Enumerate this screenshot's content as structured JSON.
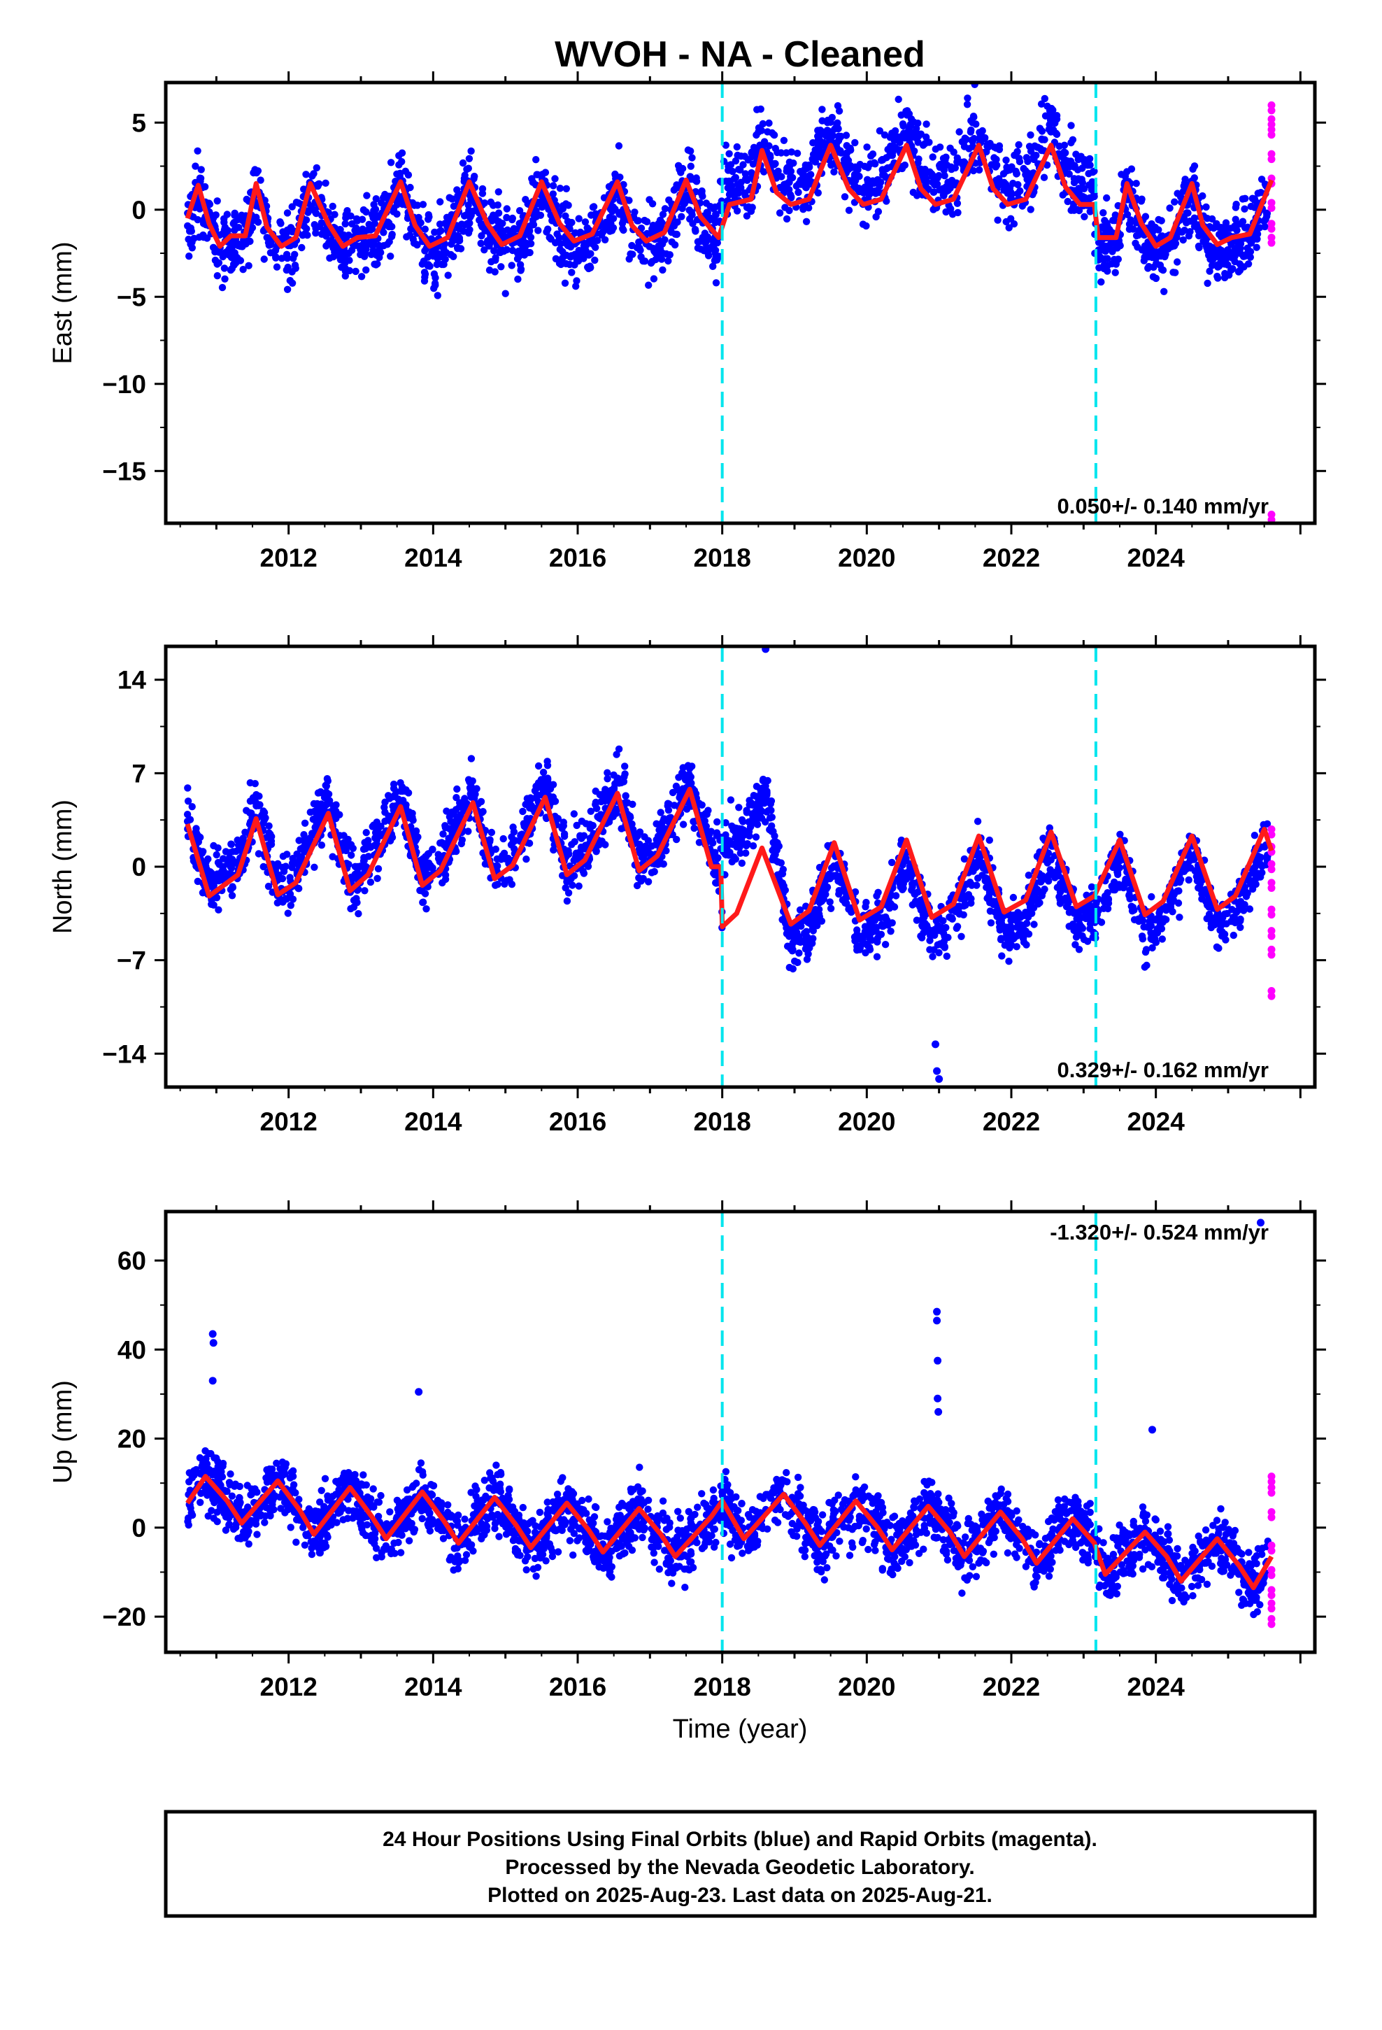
{
  "chart_data": {
    "type": "scatter",
    "title": "WVOH  - NA - Cleaned",
    "xlabel": "Time (year)",
    "x_ticks": [
      "2012",
      "2014",
      "2016",
      "2018",
      "2020",
      "2022",
      "2024"
    ],
    "xlim": [
      2010.3,
      2026.2
    ],
    "event_lines_x": [
      2018.0,
      2023.17
    ],
    "legend": "none",
    "colors": {
      "final_orbits": "#0000ff",
      "rapid_orbits": "#ff00ff",
      "model": "#ff1a1a",
      "events": "#00e5ee",
      "frame": "#000000"
    },
    "panels": [
      {
        "ylabel": "East (mm)",
        "ylim": [
          -18.0,
          7.3
        ],
        "y_ticks": [
          5,
          0,
          -5,
          -10,
          -15
        ],
        "y_tick_labels": [
          "5",
          "0",
          "−5",
          "−10",
          "−15"
        ],
        "rate_label": "0.050+/- 0.140 mm/yr",
        "rate_position": "bottom-right",
        "model_curve": {
          "x": [
            2010.6,
            2010.75,
            2010.9,
            2011.05,
            2011.2,
            2011.4,
            2011.55,
            2011.7,
            2011.9,
            2012.1,
            2012.3,
            2012.55,
            2012.75,
            2012.95,
            2013.2,
            2013.55,
            2013.75,
            2013.95,
            2014.2,
            2014.5,
            2014.75,
            2014.95,
            2015.2,
            2015.5,
            2015.75,
            2015.95,
            2016.2,
            2016.55,
            2016.75,
            2016.95,
            2017.2,
            2017.5,
            2017.7,
            2017.95,
            2018.1,
            2018.4,
            2018.55,
            2018.75,
            2018.95,
            2019.2,
            2019.5,
            2019.75,
            2019.95,
            2020.2,
            2020.55,
            2020.75,
            2020.95,
            2021.2,
            2021.55,
            2021.75,
            2021.95,
            2022.2,
            2022.55,
            2022.75,
            2022.95,
            2023.15,
            2023.2,
            2023.45,
            2023.6,
            2023.8,
            2024.0,
            2024.2,
            2024.5,
            2024.65,
            2024.85,
            2025.05,
            2025.3,
            2025.6
          ],
          "y": [
            -0.5,
            1.4,
            -0.8,
            -2.1,
            -1.5,
            -1.5,
            1.5,
            -1.0,
            -2.1,
            -1.6,
            1.5,
            -0.8,
            -2.1,
            -1.6,
            -1.5,
            1.6,
            -0.9,
            -2.1,
            -1.6,
            1.6,
            -0.8,
            -2.0,
            -1.5,
            1.6,
            -0.8,
            -1.8,
            -1.4,
            1.6,
            -0.9,
            -1.8,
            -1.3,
            1.7,
            -0.4,
            -1.6,
            0.3,
            0.6,
            3.4,
            1.0,
            0.3,
            0.6,
            3.7,
            1.2,
            0.3,
            0.6,
            3.7,
            1.2,
            0.3,
            0.6,
            3.7,
            1.2,
            0.3,
            0.6,
            3.7,
            1.3,
            0.3,
            0.3,
            -1.6,
            -1.6,
            1.5,
            -0.8,
            -2.1,
            -1.6,
            1.5,
            -0.9,
            -2.0,
            -1.6,
            -1.4,
            1.7
          ]
        },
        "point_cloud": {
          "x_range": [
            2010.6,
            2025.55
          ],
          "spread_mm": 1.5,
          "seasonal_amplitude_mm": 1.8,
          "note_segments": [
            [
              2010.6,
              2017.95,
              -0.3
            ],
            [
              2017.95,
              2023.15,
              1.1
            ],
            [
              2023.15,
              2025.55,
              -0.3
            ]
          ]
        },
        "rapid_orbit_points": {
          "x": 2025.6,
          "y": [
            6.0,
            5.2,
            4.6,
            3.2,
            1.8,
            0.4,
            -0.8,
            -1.6,
            -17.5
          ]
        }
      },
      {
        "ylabel": "North (mm)",
        "ylim": [
          -16.5,
          16.5
        ],
        "y_ticks": [
          14,
          7,
          0,
          -7,
          -14
        ],
        "y_tick_labels": [
          "14",
          "7",
          "0",
          "−7",
          "−14"
        ],
        "rate_label": "0.329+/- 0.162 mm/yr",
        "rate_position": "bottom-right",
        "model_curve": {
          "x": [
            2010.6,
            2010.9,
            2011.05,
            2011.3,
            2011.55,
            2011.85,
            2012.1,
            2012.55,
            2012.85,
            2013.1,
            2013.55,
            2013.85,
            2014.1,
            2014.55,
            2014.85,
            2015.1,
            2015.55,
            2015.85,
            2016.1,
            2016.55,
            2016.85,
            2017.1,
            2017.55,
            2017.85,
            2017.98,
            2018.0,
            2018.2,
            2018.55,
            2018.95,
            2019.2,
            2019.55,
            2019.9,
            2020.2,
            2020.55,
            2020.9,
            2021.2,
            2021.55,
            2021.9,
            2022.2,
            2022.55,
            2022.9,
            2023.15,
            2023.5,
            2023.85,
            2024.1,
            2024.5,
            2024.85,
            2025.1,
            2025.5,
            2025.6
          ],
          "y": [
            3.2,
            -2.2,
            -1.6,
            -0.6,
            3.6,
            -2.1,
            -1.2,
            4.0,
            -1.8,
            -0.6,
            4.5,
            -1.4,
            -0.3,
            4.8,
            -0.9,
            0.1,
            5.2,
            -0.6,
            0.5,
            5.5,
            -0.3,
            0.8,
            5.8,
            0.0,
            0.0,
            -4.5,
            -3.5,
            1.4,
            -4.3,
            -3.3,
            1.8,
            -4.0,
            -3.0,
            2.0,
            -3.8,
            -2.8,
            2.3,
            -3.4,
            -2.5,
            2.6,
            -3.0,
            -2.2,
            2.0,
            -3.6,
            -2.6,
            2.3,
            -3.2,
            -2.2,
            2.8,
            1.2
          ]
        },
        "point_cloud": {
          "x_range": [
            2010.6,
            2025.55
          ],
          "spread_mm": 1.6,
          "seasonal_amplitude_mm": 3.0,
          "note_segments": [
            [
              2010.6,
              2018.6,
              0.8
            ],
            [
              2018.9,
              2025.55,
              -1.3
            ]
          ]
        },
        "outliers": [
          {
            "x": 2018.6,
            "y": 16.3
          },
          {
            "x": 2020.95,
            "y": -13.3
          },
          {
            "x": 2020.97,
            "y": -15.3
          },
          {
            "x": 2021.0,
            "y": -15.9
          }
        ],
        "rapid_orbit_points": {
          "x": 2025.6,
          "y": [
            2.8,
            1.5,
            0.2,
            -1.2,
            -3.2,
            -4.8,
            -6.2,
            -9.3
          ]
        }
      },
      {
        "ylabel": "Up (mm)",
        "ylim": [
          -28.0,
          71.0
        ],
        "y_ticks": [
          60,
          40,
          20,
          0,
          -20
        ],
        "y_tick_labels": [
          "60",
          "40",
          "20",
          "0",
          "−20"
        ],
        "rate_label": "-1.320+/- 0.524 mm/yr",
        "rate_position": "top-right",
        "model_curve": {
          "x": [
            2010.6,
            2010.85,
            2011.15,
            2011.35,
            2011.85,
            2012.15,
            2012.35,
            2012.85,
            2013.15,
            2013.35,
            2013.85,
            2014.15,
            2014.35,
            2014.85,
            2015.15,
            2015.35,
            2015.85,
            2016.15,
            2016.35,
            2016.85,
            2017.15,
            2017.35,
            2017.85,
            2018.0,
            2018.3,
            2018.85,
            2019.15,
            2019.35,
            2019.85,
            2020.15,
            2020.35,
            2020.85,
            2021.15,
            2021.35,
            2021.85,
            2022.15,
            2022.35,
            2022.85,
            2023.15,
            2023.3,
            2023.85,
            2024.15,
            2024.35,
            2024.85,
            2025.15,
            2025.35,
            2025.6
          ],
          "y": [
            5.5,
            11.5,
            6.0,
            1.0,
            10.5,
            4.0,
            -1.5,
            9.0,
            2.5,
            -2.5,
            8.0,
            1.5,
            -3.5,
            6.8,
            0.5,
            -4.5,
            5.5,
            -0.5,
            -5.5,
            4.3,
            -1.5,
            -6.5,
            2.5,
            6.0,
            -2.5,
            7.5,
            1.0,
            -4.0,
            6.0,
            0.0,
            -5.0,
            4.8,
            -1.0,
            -6.5,
            3.5,
            -2.5,
            -8.0,
            2.0,
            -3.5,
            -10.5,
            -1.0,
            -6.5,
            -12.0,
            -2.5,
            -8.5,
            -13.5,
            -6.5
          ]
        },
        "point_cloud": {
          "x_range": [
            2010.6,
            2025.55
          ],
          "spread_mm": 5.0,
          "seasonal_amplitude_mm": 5.0,
          "note_segments": [
            [
              2010.6,
              2025.55,
              0.0
            ]
          ]
        },
        "outliers": [
          {
            "x": 2010.95,
            "y": 43.5
          },
          {
            "x": 2010.96,
            "y": 41.5
          },
          {
            "x": 2010.95,
            "y": 33.0
          },
          {
            "x": 2013.8,
            "y": 30.5
          },
          {
            "x": 2020.97,
            "y": 48.5
          },
          {
            "x": 2020.97,
            "y": 46.5
          },
          {
            "x": 2020.98,
            "y": 37.5
          },
          {
            "x": 2020.98,
            "y": 29.0
          },
          {
            "x": 2020.99,
            "y": 26.0
          },
          {
            "x": 2023.95,
            "y": 22.0
          },
          {
            "x": 2025.45,
            "y": 68.5
          }
        ],
        "rapid_orbit_points": {
          "x": 2025.6,
          "y": [
            11.5,
            9.0,
            3.5,
            -4.0,
            -9.5,
            -14.0,
            -17.0,
            -20.5
          ]
        }
      }
    ]
  },
  "footer": {
    "line1": "24 Hour Positions Using Final Orbits (blue) and Rapid Orbits (magenta).",
    "line2": "Processed by the Nevada Geodetic Laboratory.",
    "line3": "Plotted on 2025-Aug-23. Last data on 2025-Aug-21."
  }
}
